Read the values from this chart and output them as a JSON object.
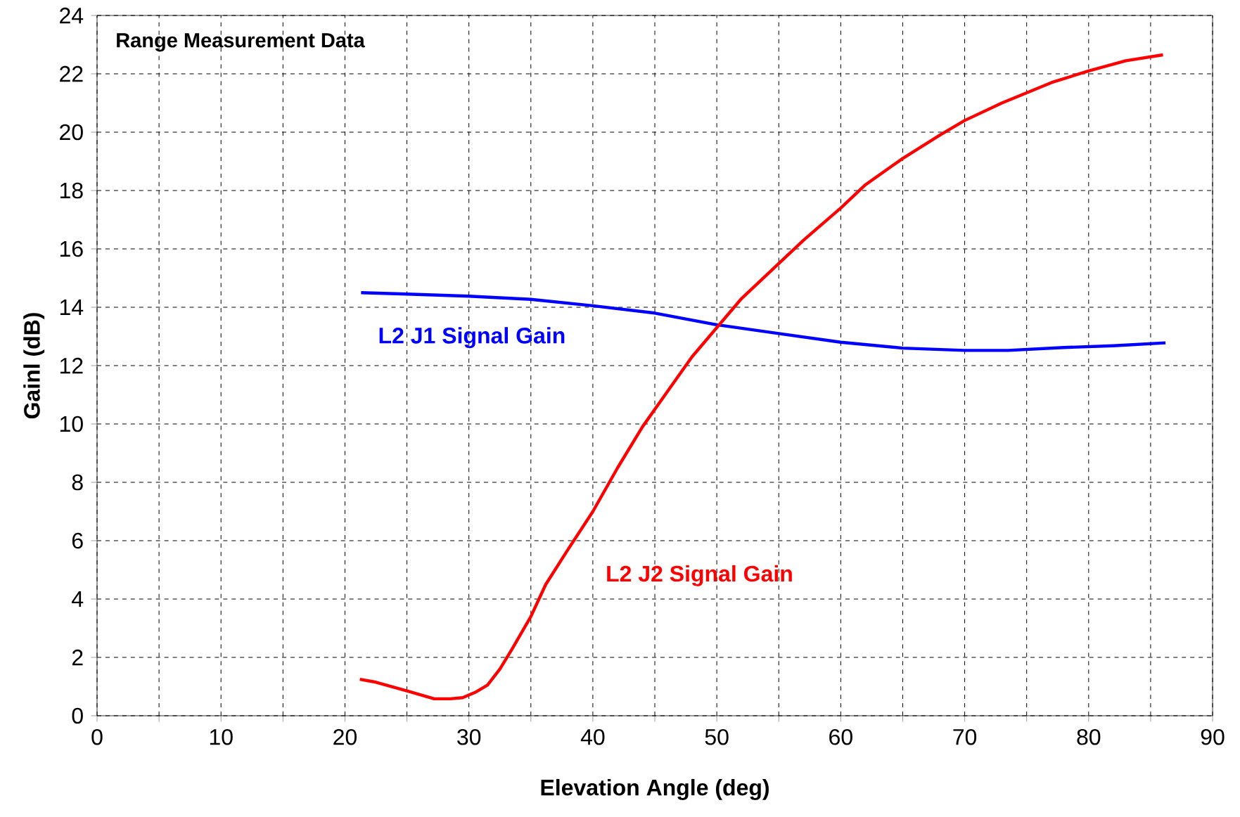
{
  "chart_data": {
    "type": "line",
    "title": "Range Measurement Data",
    "xlabel": "Elevation Angle (deg)",
    "ylabel": "Gainl (dB)",
    "xlim": [
      0,
      90
    ],
    "ylim": [
      0,
      24
    ],
    "xticks": [
      0,
      {
        "value": 5,
        "label": null
      },
      10,
      {
        "value": 15,
        "label": null
      },
      20,
      {
        "value": 25,
        "label": null
      },
      30,
      {
        "value": 35,
        "label": null
      },
      40,
      {
        "value": 45,
        "label": null
      },
      50,
      {
        "value": 55,
        "label": null
      },
      60,
      {
        "value": 65,
        "label": null
      },
      70,
      {
        "value": 75,
        "label": null
      },
      80,
      {
        "value": 85,
        "label": null
      },
      90
    ],
    "yticks": [
      0,
      2,
      4,
      6,
      8,
      10,
      12,
      14,
      16,
      18,
      20,
      22,
      24
    ],
    "grid": true,
    "legend": false,
    "marker": "none",
    "line_style": "solid",
    "series": [
      {
        "name": "L2 J1 Signal Gain",
        "color": "#0000ff",
        "x": [
          21.3,
          25,
          30,
          35,
          40,
          45,
          50,
          55,
          60,
          65,
          70,
          73.5,
          78,
          82,
          86.2
        ],
        "values": [
          14.5,
          14.45,
          14.38,
          14.27,
          14.05,
          13.8,
          13.4,
          13.1,
          12.8,
          12.6,
          12.52,
          12.52,
          12.62,
          12.68,
          12.78
        ]
      },
      {
        "name": "L2 J2 Signal Gain",
        "color": "#ff0000",
        "x": [
          21.2,
          22.5,
          25,
          27.2,
          28.5,
          29.5,
          30.5,
          31.5,
          32.5,
          33.5,
          35,
          36.2,
          38,
          40,
          42,
          44,
          46,
          48,
          50,
          52,
          54,
          57,
          60,
          62,
          65,
          68,
          70,
          73,
          77,
          80,
          83,
          86
        ],
        "values": [
          1.25,
          1.15,
          0.85,
          0.58,
          0.58,
          0.62,
          0.8,
          1.05,
          1.6,
          2.3,
          3.4,
          4.5,
          5.7,
          7.0,
          8.5,
          9.9,
          11.1,
          12.3,
          13.3,
          14.3,
          15.1,
          16.3,
          17.4,
          18.2,
          19.1,
          19.9,
          20.4,
          21.0,
          21.7,
          22.1,
          22.45,
          22.65
        ]
      }
    ]
  }
}
